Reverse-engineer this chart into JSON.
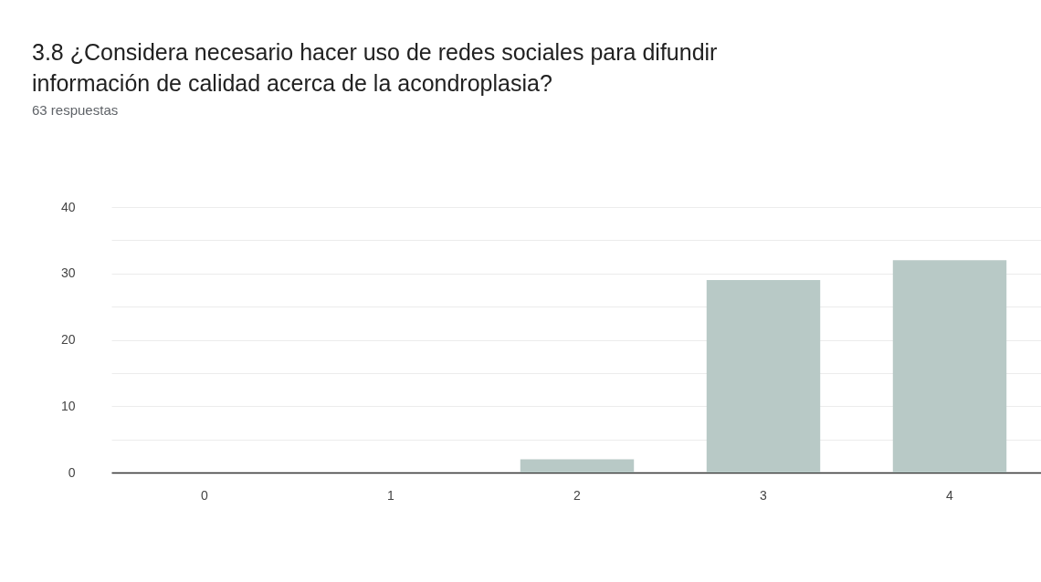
{
  "chart_data": {
    "type": "bar",
    "title": "3.8 ¿Considera necesario hacer uso de redes sociales para difundir información de calidad acerca de la acondroplasia?",
    "subtitle": "63 respuestas",
    "categories": [
      "0",
      "1",
      "2",
      "3",
      "4"
    ],
    "values": [
      0,
      0,
      2,
      29,
      32
    ],
    "color": "#b8c9c6",
    "ylim": [
      0,
      40
    ],
    "yticks": [
      0,
      {
        "value": 5,
        "label": null
      },
      10,
      {
        "value": 15,
        "label": null
      },
      20,
      {
        "value": 25,
        "label": null
      },
      30,
      {
        "value": 35,
        "label": null
      },
      40
    ],
    "grid": "y"
  }
}
